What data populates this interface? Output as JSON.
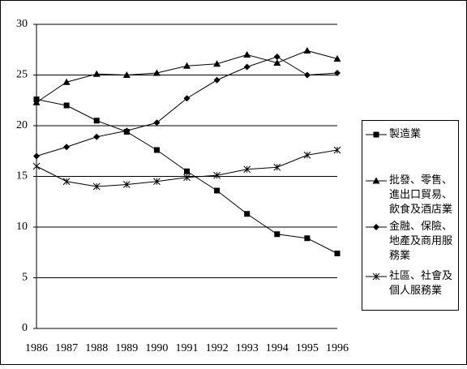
{
  "chart_data": {
    "type": "line",
    "categories": [
      "1986",
      "1987",
      "1988",
      "1989",
      "1990",
      "1991",
      "1992",
      "1993",
      "1994",
      "1995",
      "1996"
    ],
    "series": [
      {
        "name": "製造業",
        "color": "#000000",
        "marker": "square",
        "values": [
          22.6,
          22.0,
          20.5,
          19.4,
          17.6,
          15.5,
          13.6,
          11.3,
          9.3,
          8.9,
          7.4
        ]
      },
      {
        "name": "批發、零售、進出口貿易、飲食及酒店業",
        "color": "#000000",
        "marker": "triangle",
        "values": [
          22.3,
          24.3,
          25.1,
          25.0,
          25.2,
          25.9,
          26.1,
          27.0,
          26.2,
          27.4,
          26.6
        ]
      },
      {
        "name": "金融、保險、地產及商用服務業",
        "color": "#000000",
        "marker": "diamond",
        "values": [
          17.0,
          17.9,
          18.9,
          19.5,
          20.3,
          22.7,
          24.5,
          25.8,
          26.8,
          25.0,
          25.2
        ]
      },
      {
        "name": "社區、社會及個人服務業",
        "color": "#000000",
        "marker": "star",
        "values": [
          16.0,
          14.5,
          14.0,
          14.2,
          14.5,
          14.9,
          15.1,
          15.7,
          15.9,
          17.1,
          17.6
        ]
      }
    ],
    "ylim": [
      0,
      30
    ],
    "yticks": [
      0,
      5,
      10,
      15,
      20,
      25,
      30
    ],
    "grid": true,
    "legend": "right"
  }
}
